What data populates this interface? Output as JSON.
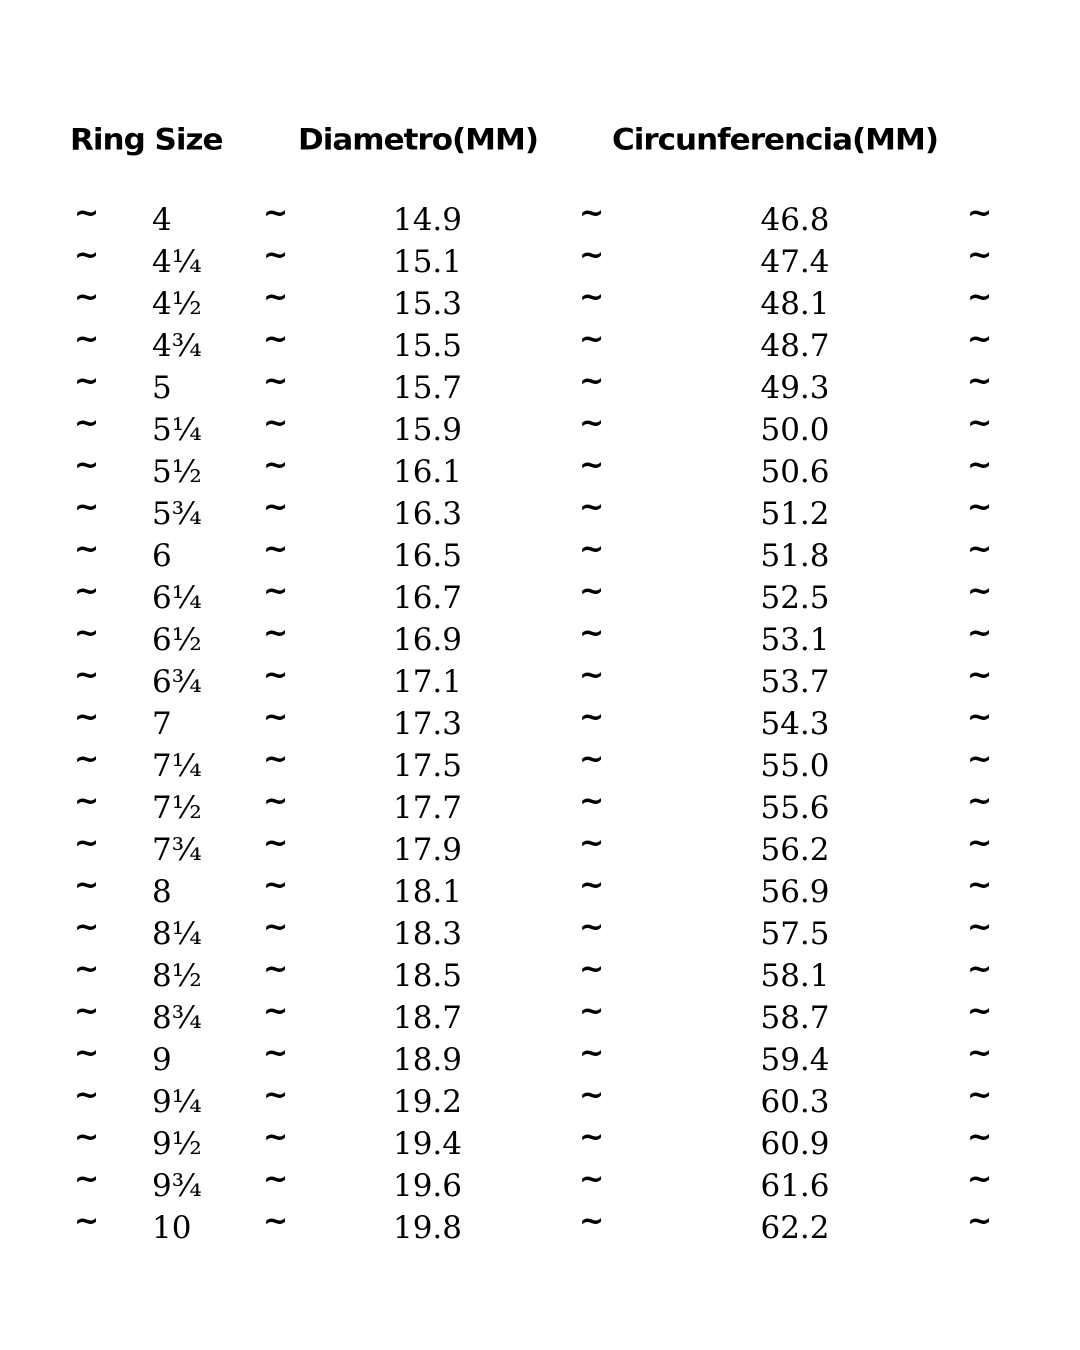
{
  "headers": {
    "ring_size": "Ring Size",
    "diameter": "Diametro(MM)",
    "circumference": "Circunferencia(MM)"
  },
  "separator": "~",
  "rows": [
    {
      "size": "4",
      "diameter": "14.9",
      "circumference": "46.8"
    },
    {
      "size": "4¼",
      "diameter": "15.1",
      "circumference": "47.4"
    },
    {
      "size": "4½",
      "diameter": "15.3",
      "circumference": "48.1"
    },
    {
      "size": "4¾",
      "diameter": "15.5",
      "circumference": "48.7"
    },
    {
      "size": "5",
      "diameter": "15.7",
      "circumference": "49.3"
    },
    {
      "size": "5¼",
      "diameter": "15.9",
      "circumference": "50.0"
    },
    {
      "size": "5½",
      "diameter": "16.1",
      "circumference": "50.6"
    },
    {
      "size": "5¾",
      "diameter": "16.3",
      "circumference": "51.2"
    },
    {
      "size": "6",
      "diameter": "16.5",
      "circumference": "51.8"
    },
    {
      "size": "6¼",
      "diameter": "16.7",
      "circumference": "52.5"
    },
    {
      "size": "6½",
      "diameter": "16.9",
      "circumference": "53.1"
    },
    {
      "size": "6¾",
      "diameter": "17.1",
      "circumference": "53.7"
    },
    {
      "size": "7",
      "diameter": "17.3",
      "circumference": "54.3"
    },
    {
      "size": "7¼",
      "diameter": "17.5",
      "circumference": "55.0"
    },
    {
      "size": "7½",
      "diameter": "17.7",
      "circumference": "55.6"
    },
    {
      "size": "7¾",
      "diameter": "17.9",
      "circumference": "56.2"
    },
    {
      "size": "8",
      "diameter": "18.1",
      "circumference": "56.9"
    },
    {
      "size": "8¼",
      "diameter": "18.3",
      "circumference": "57.5"
    },
    {
      "size": "8½",
      "diameter": "18.5",
      "circumference": "58.1"
    },
    {
      "size": "8¾",
      "diameter": "18.7",
      "circumference": "58.7"
    },
    {
      "size": "9",
      "diameter": "18.9",
      "circumference": "59.4"
    },
    {
      "size": "9¼",
      "diameter": "19.2",
      "circumference": "60.3"
    },
    {
      "size": "9½",
      "diameter": "19.4",
      "circumference": "60.9"
    },
    {
      "size": "9¾",
      "diameter": "19.6",
      "circumference": "61.6"
    },
    {
      "size": "10",
      "diameter": "19.8",
      "circumference": "62.2"
    }
  ]
}
